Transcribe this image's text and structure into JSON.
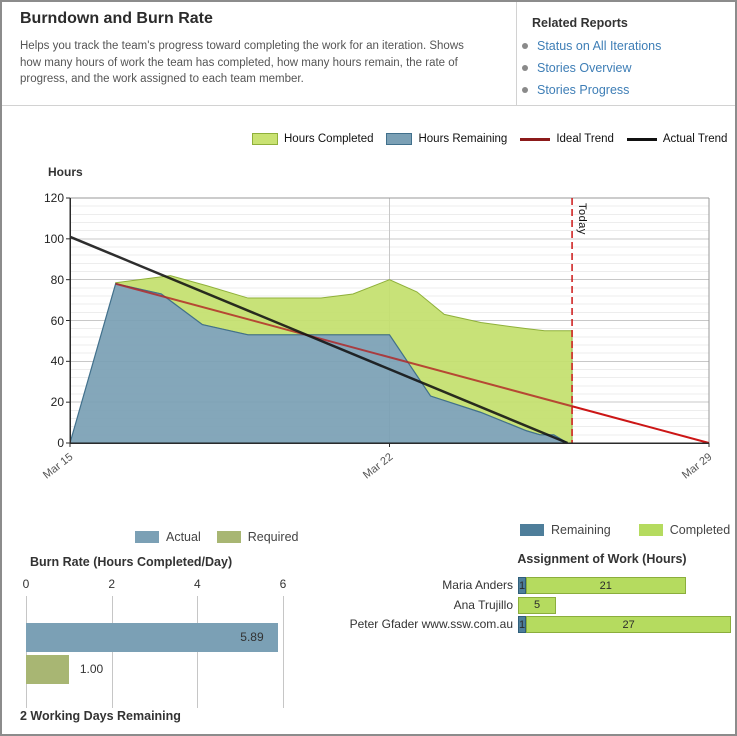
{
  "header": {
    "title": "Burndown and Burn Rate",
    "description": "Helps you track the team's progress toward completing the work for an iteration. Shows how many hours of work the team has completed, how many hours remain, the rate of progress, and the work assigned to each team member."
  },
  "related_reports": {
    "title": "Related Reports",
    "links": [
      {
        "label": "Status on All Iterations"
      },
      {
        "label": "Stories Overview"
      },
      {
        "label": "Stories Progress"
      }
    ]
  },
  "footer": {
    "text": "2 Working Days Remaining"
  },
  "colors": {
    "completed_green": "#C4E06E",
    "completed_green_border": "#8FB03A",
    "remaining_blue": "#7BA0B5",
    "remaining_blue_border": "#41708C",
    "ideal_trend": "#8C1A1A",
    "ideal_trend_future": "#CC1616",
    "actual_trend": "#111111",
    "link_blue": "#3E7EB6",
    "olive": "#A8B673",
    "assign_remaining": "#4E7E9A",
    "assign_completed": "#B5DB5F"
  },
  "chart_data": [
    {
      "id": "burndown",
      "type": "area",
      "ylabel": "Hours",
      "ylim": [
        0,
        120
      ],
      "ytick_step": 20,
      "minor_grid_step": 4,
      "x_range_days": [
        0,
        14
      ],
      "xticks": [
        {
          "day": 0,
          "label": "Mar 15"
        },
        {
          "day": 7,
          "label": "Mar 22"
        },
        {
          "day": 14,
          "label": "Mar 29"
        }
      ],
      "today_day": 11,
      "today_label": "Today",
      "legend": [
        "Hours Completed",
        "Hours Remaining",
        "Ideal Trend",
        "Actual Trend"
      ],
      "series": [
        {
          "name": "Hours Remaining",
          "type": "area",
          "points": [
            [
              0,
              0
            ],
            [
              1,
              78
            ],
            [
              2,
              73
            ],
            [
              2.9,
              58
            ],
            [
              3.9,
              53
            ],
            [
              7,
              53
            ],
            [
              7.9,
              23
            ],
            [
              9,
              15
            ],
            [
              10,
              6
            ],
            [
              10.3,
              4
            ],
            [
              10.6,
              4
            ],
            [
              10.9,
              0
            ]
          ]
        },
        {
          "name": "Hours Completed (stacked top edge = remaining + completed)",
          "type": "area",
          "points": [
            [
              1,
              78.5
            ],
            [
              2.2,
              82
            ],
            [
              3,
              77
            ],
            [
              3.9,
              71
            ],
            [
              5.5,
              71
            ],
            [
              6.2,
              73
            ],
            [
              7,
              80
            ],
            [
              7.6,
              74
            ],
            [
              8.2,
              63
            ],
            [
              9,
              59
            ],
            [
              10,
              56
            ],
            [
              10.4,
              55
            ],
            [
              11,
              55
            ]
          ]
        },
        {
          "name": "Ideal Trend",
          "type": "line",
          "points": [
            [
              1,
              78
            ],
            [
              14,
              0
            ]
          ]
        },
        {
          "name": "Actual Trend",
          "type": "line",
          "points": [
            [
              0,
              101
            ],
            [
              10.9,
              0
            ]
          ]
        }
      ]
    },
    {
      "id": "burn_rate",
      "type": "bar",
      "title": "Burn Rate (Hours Completed/Day)",
      "xlim": [
        0,
        6
      ],
      "xticks": [
        0,
        2,
        4,
        6
      ],
      "categories": [
        "Actual",
        "Required"
      ],
      "values": [
        5.89,
        1.0
      ],
      "value_labels": [
        "5.89",
        "1.00"
      ]
    },
    {
      "id": "assignment",
      "type": "stacked-bar",
      "title": "Assignment of Work (Hours)",
      "legend": [
        "Remaining",
        "Completed"
      ],
      "categories": [
        "Maria Anders",
        "Ana Trujillo",
        "Peter Gfader www.ssw.com.au"
      ],
      "series": [
        {
          "name": "Remaining",
          "values": [
            1,
            0,
            1
          ]
        },
        {
          "name": "Completed",
          "values": [
            21,
            5,
            27
          ]
        }
      ]
    }
  ]
}
